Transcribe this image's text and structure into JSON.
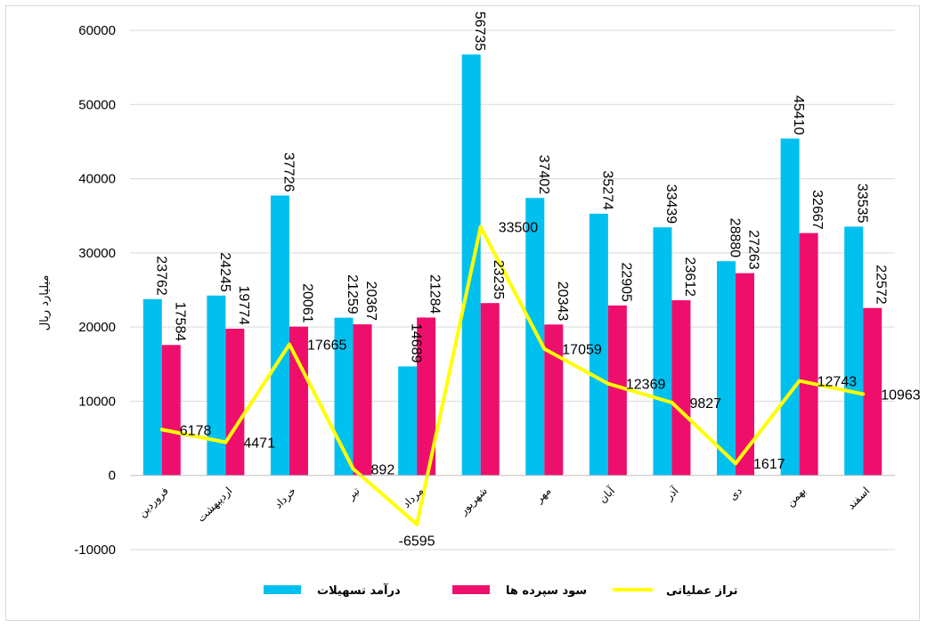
{
  "chart_data": {
    "type": "bar",
    "title": "",
    "xlabel": "",
    "ylabel": "میلیارد ریال",
    "ylim": [
      -10000,
      60000
    ],
    "yticks": [
      -10000,
      0,
      10000,
      20000,
      30000,
      40000,
      50000,
      60000
    ],
    "grid": true,
    "legend_position": "bottom",
    "categories": [
      "فروردین",
      "اردیبهشت",
      "خرداد",
      "تیر",
      "مرداد",
      "شهریور",
      "مهر",
      "آبان",
      "آذر",
      "دی",
      "بهمن",
      "اسفند"
    ],
    "series": [
      {
        "name": "درآمد تسهیلات",
        "type": "bar",
        "color": "#00c0f0",
        "values": [
          23762,
          24245,
          37726,
          21259,
          14689,
          56735,
          37402,
          35274,
          33439,
          28880,
          45410,
          33535
        ]
      },
      {
        "name": "سود سپرده ها",
        "type": "bar",
        "color": "#ee0f6d",
        "values": [
          17584,
          19774,
          20061,
          20367,
          21284,
          23235,
          20343,
          22905,
          23612,
          27263,
          32667,
          22572
        ]
      },
      {
        "name": "تراز عملیاتی",
        "type": "line",
        "color": "#ffff00",
        "values": [
          6178,
          4471,
          17665,
          892,
          -6595,
          33500,
          17059,
          12369,
          9827,
          1617,
          12743,
          10963
        ]
      }
    ]
  }
}
